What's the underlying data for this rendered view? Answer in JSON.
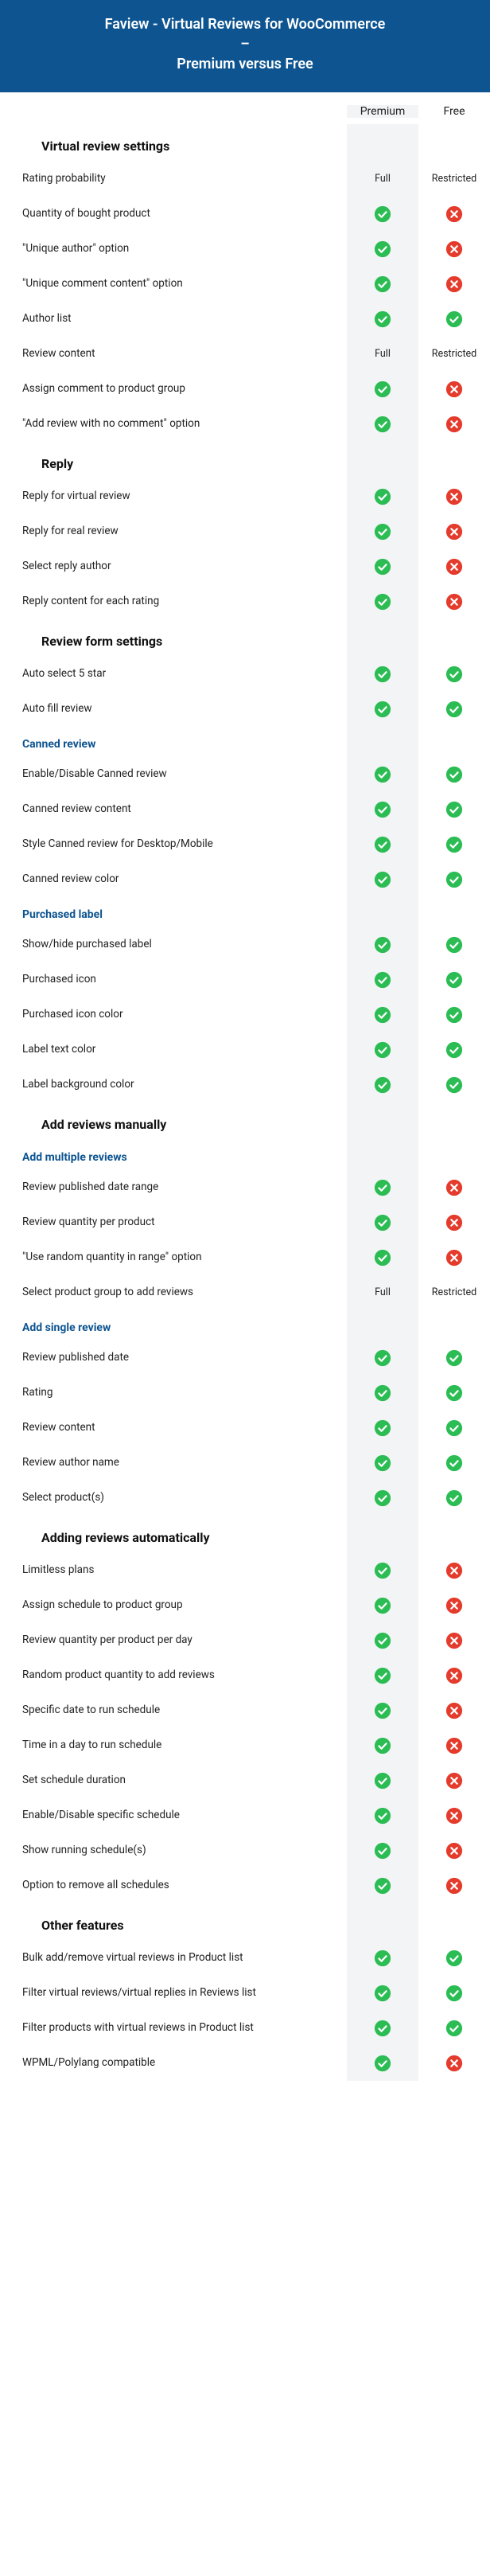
{
  "colors": {
    "header_bg": "#0d5490",
    "header_text": "#ffffff",
    "premium_col_bg": "#f3f4f5",
    "section_heading": "#111111",
    "subsection_heading": "#0d5490",
    "body_text": "#222222",
    "yes_bg": "#2bbd54",
    "no_bg": "#e43b2c",
    "icon_fg": "#ffffff"
  },
  "header": {
    "line1": "Faview - Virtual Reviews for WooCommerce",
    "line2": "–",
    "line3": "Premium versus Free"
  },
  "columns": {
    "premium": "Premium",
    "free": "Free"
  },
  "text_values": {
    "full": "Full",
    "restricted": "Restricted"
  },
  "sections": [
    {
      "heading": "Virtual review settings",
      "rows": [
        {
          "label": "Rating probability",
          "premium": "full_text",
          "free": "restricted_text"
        },
        {
          "label": "Quantity of bought product",
          "premium": "yes",
          "free": "no"
        },
        {
          "label": "\"Unique author\" option",
          "premium": "yes",
          "free": "no"
        },
        {
          "label": "\"Unique comment content\" option",
          "premium": "yes",
          "free": "no"
        },
        {
          "label": "Author list",
          "premium": "yes",
          "free": "yes"
        },
        {
          "label": "Review content",
          "premium": "full_text",
          "free": "restricted_text"
        },
        {
          "label": "Assign comment to product group",
          "premium": "yes",
          "free": "no"
        },
        {
          "label": "\"Add review with no comment\" option",
          "premium": "yes",
          "free": "no"
        }
      ]
    },
    {
      "heading": "Reply",
      "rows": [
        {
          "label": "Reply for virtual review",
          "premium": "yes",
          "free": "no"
        },
        {
          "label": "Reply for real review",
          "premium": "yes",
          "free": "no"
        },
        {
          "label": "Select reply author",
          "premium": "yes",
          "free": "no"
        },
        {
          "label": "Reply content for each rating",
          "premium": "yes",
          "free": "no"
        }
      ]
    },
    {
      "heading": "Review form settings",
      "rows": [
        {
          "label": "Auto select 5 star",
          "premium": "yes",
          "free": "yes"
        },
        {
          "label": "Auto fill review",
          "premium": "yes",
          "free": "yes"
        }
      ],
      "subsections": [
        {
          "heading": "Canned review",
          "rows": [
            {
              "label": "Enable/Disable Canned review",
              "premium": "yes",
              "free": "yes"
            },
            {
              "label": "Canned review content",
              "premium": "yes",
              "free": "yes"
            },
            {
              "label": "Style Canned review for Desktop/Mobile",
              "premium": "yes",
              "free": "yes"
            },
            {
              "label": "Canned review color",
              "premium": "yes",
              "free": "yes"
            }
          ]
        },
        {
          "heading": "Purchased label",
          "rows": [
            {
              "label": "Show/hide purchased label",
              "premium": "yes",
              "free": "yes"
            },
            {
              "label": "Purchased icon",
              "premium": "yes",
              "free": "yes"
            },
            {
              "label": "Purchased icon color",
              "premium": "yes",
              "free": "yes"
            },
            {
              "label": "Label text color",
              "premium": "yes",
              "free": "yes"
            },
            {
              "label": "Label background color",
              "premium": "yes",
              "free": "yes"
            }
          ]
        }
      ]
    },
    {
      "heading": "Add reviews manually",
      "subsections": [
        {
          "heading": "Add multiple reviews",
          "rows": [
            {
              "label": "Review published date range",
              "premium": "yes",
              "free": "no"
            },
            {
              "label": "Review quantity per product",
              "premium": "yes",
              "free": "no"
            },
            {
              "label": "\"Use random quantity in range\" option",
              "premium": "yes",
              "free": "no"
            },
            {
              "label": "Select product group to add reviews",
              "premium": "full_text",
              "free": "restricted_text"
            }
          ]
        },
        {
          "heading": "Add single review",
          "rows": [
            {
              "label": "Review published date",
              "premium": "yes",
              "free": "yes"
            },
            {
              "label": "Rating",
              "premium": "yes",
              "free": "yes"
            },
            {
              "label": "Review content",
              "premium": "yes",
              "free": "yes"
            },
            {
              "label": "Review author name",
              "premium": "yes",
              "free": "yes"
            },
            {
              "label": "Select product(s)",
              "premium": "yes",
              "free": "yes"
            }
          ]
        }
      ]
    },
    {
      "heading": "Adding reviews automatically",
      "rows": [
        {
          "label": "Limitless plans",
          "premium": "yes",
          "free": "no"
        },
        {
          "label": "Assign schedule to product group",
          "premium": "yes",
          "free": "no"
        },
        {
          "label": "Review quantity per product per day",
          "premium": "yes",
          "free": "no"
        },
        {
          "label": "Random product quantity to add reviews",
          "premium": "yes",
          "free": "no"
        },
        {
          "label": "Specific date to run schedule",
          "premium": "yes",
          "free": "no"
        },
        {
          "label": "Time in a day to run schedule",
          "premium": "yes",
          "free": "no"
        },
        {
          "label": "Set schedule duration",
          "premium": "yes",
          "free": "no"
        },
        {
          "label": "Enable/Disable specific schedule",
          "premium": "yes",
          "free": "no"
        },
        {
          "label": "Show running schedule(s)",
          "premium": "yes",
          "free": "no"
        },
        {
          "label": "Option to remove all schedules",
          "premium": "yes",
          "free": "no"
        }
      ]
    },
    {
      "heading": "Other features",
      "rows": [
        {
          "label": "Bulk add/remove virtual reviews in Product list",
          "premium": "yes",
          "free": "yes"
        },
        {
          "label": "Filter virtual reviews/virtual replies in Reviews list",
          "premium": "yes",
          "free": "yes"
        },
        {
          "label": "Filter products with virtual reviews in Product list",
          "premium": "yes",
          "free": "yes"
        },
        {
          "label": "WPML/Polylang compatible",
          "premium": "yes",
          "free": "no"
        }
      ]
    }
  ]
}
